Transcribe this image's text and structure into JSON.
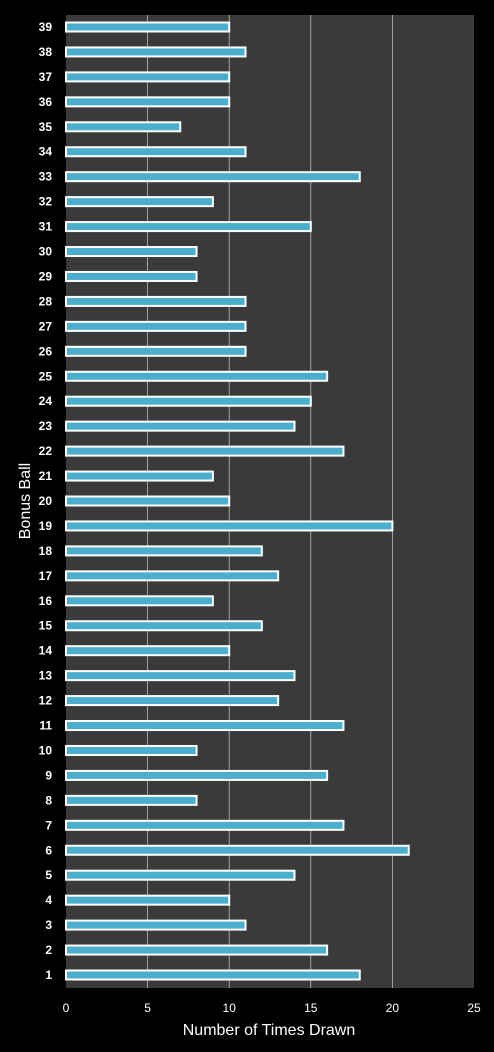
{
  "chart_data": {
    "type": "bar",
    "orientation": "horizontal",
    "title": "",
    "xlabel": "Number of Times Drawn",
    "ylabel": "Bonus Ball",
    "xlim": [
      0,
      25
    ],
    "x_ticks": [
      "0",
      "5",
      "10",
      "15",
      "20",
      "25"
    ],
    "grid": "vertical",
    "categories": [
      "1",
      "2",
      "3",
      "4",
      "5",
      "6",
      "7",
      "8",
      "9",
      "10",
      "11",
      "12",
      "13",
      "14",
      "15",
      "16",
      "17",
      "18",
      "19",
      "20",
      "21",
      "22",
      "23",
      "24",
      "25",
      "26",
      "27",
      "28",
      "29",
      "30",
      "31",
      "32",
      "33",
      "34",
      "35",
      "36",
      "37",
      "38",
      "39"
    ],
    "values": [
      18,
      16,
      11,
      10,
      14,
      21,
      17,
      8,
      16,
      8,
      17,
      13,
      14,
      10,
      12,
      9,
      13,
      12,
      20,
      10,
      9,
      17,
      14,
      15,
      16,
      11,
      11,
      11,
      8,
      8,
      15,
      9,
      18,
      11,
      7,
      10,
      10,
      11,
      10
    ]
  },
  "colors": {
    "background": "#000000",
    "plot_area": "#3a3a3a",
    "bar_fill": "#4aaecc",
    "bar_border": "#ffffff",
    "gridline": "#bdbdbd",
    "text": "#ffffff"
  }
}
